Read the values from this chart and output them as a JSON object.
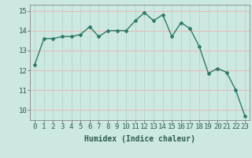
{
  "x": [
    0,
    1,
    2,
    3,
    4,
    5,
    6,
    7,
    8,
    9,
    10,
    11,
    12,
    13,
    14,
    15,
    16,
    17,
    18,
    19,
    20,
    21,
    22,
    23
  ],
  "y": [
    12.3,
    13.6,
    13.6,
    13.7,
    13.7,
    13.8,
    14.2,
    13.7,
    14.0,
    14.0,
    14.0,
    14.5,
    14.9,
    14.5,
    14.8,
    13.7,
    14.4,
    14.1,
    13.2,
    11.85,
    12.1,
    11.9,
    11.0,
    9.7
  ],
  "xlabel": "Humidex (Indice chaleur)",
  "ylim": [
    9.5,
    15.3
  ],
  "xlim": [
    -0.5,
    23.5
  ],
  "yticks": [
    10,
    11,
    12,
    13,
    14,
    15
  ],
  "xticks": [
    0,
    1,
    2,
    3,
    4,
    5,
    6,
    7,
    8,
    9,
    10,
    11,
    12,
    13,
    14,
    15,
    16,
    17,
    18,
    19,
    20,
    21,
    22,
    23
  ],
  "line_color": "#2d7a6a",
  "marker_color": "#2d7a6a",
  "bg_color": "#cce8e0",
  "grid_h_color": "#e8b8b8",
  "grid_v_color": "#b8d8d0",
  "axis_color": "#888888",
  "text_color": "#2d5a50",
  "font_family": "monospace",
  "label_fontsize": 7.0,
  "tick_fontsize": 6.5
}
